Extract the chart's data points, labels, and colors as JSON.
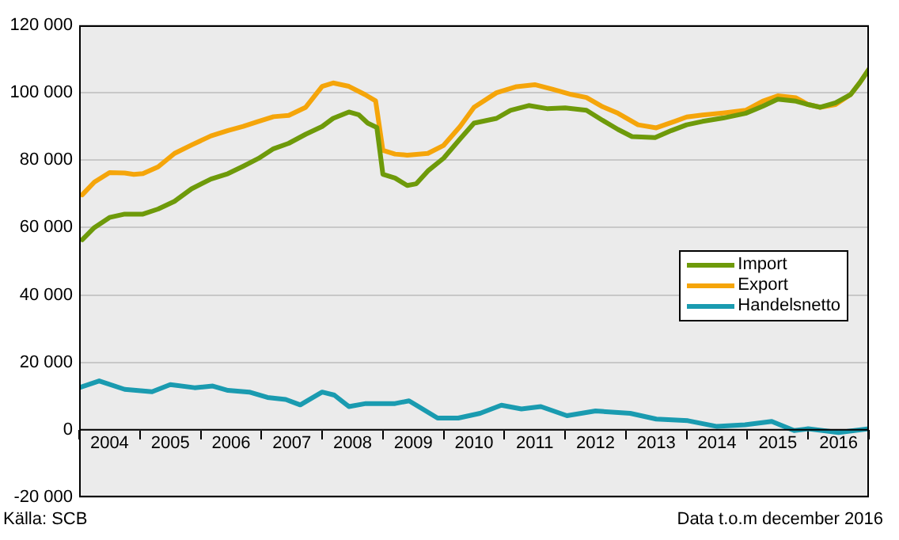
{
  "chart_data": {
    "type": "line",
    "xlim": [
      2004,
      2017
    ],
    "xticks": [
      {
        "value": 2004,
        "label": null
      },
      {
        "value": 2004.5,
        "label": "2004"
      },
      {
        "value": 2005,
        "label": null
      },
      {
        "value": 2005.5,
        "label": "2005"
      },
      {
        "value": 2006,
        "label": null
      },
      {
        "value": 2006.5,
        "label": "2006"
      },
      {
        "value": 2007,
        "label": null
      },
      {
        "value": 2007.5,
        "label": "2007"
      },
      {
        "value": 2008,
        "label": null
      },
      {
        "value": 2008.5,
        "label": "2008"
      },
      {
        "value": 2009,
        "label": null
      },
      {
        "value": 2009.5,
        "label": "2009"
      },
      {
        "value": 2010,
        "label": null
      },
      {
        "value": 2010.5,
        "label": "2010"
      },
      {
        "value": 2011,
        "label": null
      },
      {
        "value": 2011.5,
        "label": "2011"
      },
      {
        "value": 2012,
        "label": null
      },
      {
        "value": 2012.5,
        "label": "2012"
      },
      {
        "value": 2013,
        "label": null
      },
      {
        "value": 2013.5,
        "label": "2013"
      },
      {
        "value": 2014,
        "label": null
      },
      {
        "value": 2014.5,
        "label": "2014"
      },
      {
        "value": 2015,
        "label": null
      },
      {
        "value": 2015.5,
        "label": "2015"
      },
      {
        "value": 2016,
        "label": null
      },
      {
        "value": 2016.5,
        "label": "2016"
      },
      {
        "value": 2017,
        "label": null
      }
    ],
    "ylim": [
      -20000,
      120000
    ],
    "yticks": [
      {
        "value": -20000,
        "label": "-20 000"
      },
      {
        "value": 0,
        "label": "0"
      },
      {
        "value": 20000,
        "label": "20 000"
      },
      {
        "value": 40000,
        "label": "40 000"
      },
      {
        "value": 60000,
        "label": "60 000"
      },
      {
        "value": 80000,
        "label": "80 000"
      },
      {
        "value": 100000,
        "label": "100 000"
      },
      {
        "value": 120000,
        "label": "120 000"
      }
    ],
    "grid": "y",
    "legend": "right",
    "marker": "none",
    "line_style": "solid",
    "annotations": [
      "Källa: SCB",
      "Data t.o.m december 2016"
    ],
    "series": [
      {
        "name": "Import",
        "color": "#6e9a0a",
        "x": [
          2004.05,
          2004.25,
          2004.5,
          2004.75,
          2005.05,
          2005.3,
          2005.57,
          2005.85,
          2006.17,
          2006.45,
          2006.7,
          2006.95,
          2007.2,
          2007.45,
          2007.73,
          2008.0,
          2008.18,
          2008.44,
          2008.6,
          2008.75,
          2008.9,
          2009.0,
          2009.2,
          2009.4,
          2009.55,
          2009.74,
          2010.0,
          2010.27,
          2010.5,
          2010.87,
          2011.1,
          2011.4,
          2011.7,
          2012.0,
          2012.35,
          2012.6,
          2012.87,
          2013.1,
          2013.48,
          2013.75,
          2014.0,
          2014.26,
          2014.6,
          2014.97,
          2015.25,
          2015.5,
          2015.8,
          2016.0,
          2016.2,
          2016.45,
          2016.7,
          2016.85,
          2017.0
        ],
        "values": [
          56400,
          60000,
          63000,
          64000,
          64000,
          65500,
          67800,
          71500,
          74400,
          76000,
          78200,
          80500,
          83400,
          85000,
          87700,
          90000,
          92400,
          94300,
          93500,
          91000,
          89700,
          75800,
          74700,
          72500,
          73000,
          76800,
          80600,
          86300,
          91000,
          92400,
          94800,
          96200,
          95300,
          95500,
          94800,
          92000,
          89100,
          87000,
          86700,
          88800,
          90500,
          91500,
          92500,
          93900,
          96000,
          98100,
          97500,
          96500,
          95700,
          97000,
          99500,
          103000,
          107000
        ]
      },
      {
        "name": "Export",
        "color": "#f5a50a",
        "x": [
          2004.05,
          2004.25,
          2004.5,
          2004.75,
          2004.9,
          2005.05,
          2005.3,
          2005.57,
          2005.85,
          2006.17,
          2006.45,
          2006.7,
          2006.95,
          2007.2,
          2007.45,
          2007.73,
          2008.0,
          2008.18,
          2008.44,
          2008.7,
          2008.88,
          2009.0,
          2009.2,
          2009.4,
          2009.74,
          2010.0,
          2010.27,
          2010.5,
          2010.87,
          2011.2,
          2011.5,
          2011.8,
          2012.1,
          2012.35,
          2012.6,
          2012.87,
          2013.2,
          2013.5,
          2013.8,
          2014.0,
          2014.26,
          2014.6,
          2014.97,
          2015.25,
          2015.5,
          2015.8,
          2016.0,
          2016.2,
          2016.45,
          2016.7,
          2016.85,
          2017.0
        ],
        "values": [
          69700,
          73500,
          76300,
          76200,
          75800,
          76000,
          78000,
          82000,
          84500,
          87200,
          88800,
          90000,
          91500,
          92900,
          93300,
          95700,
          101900,
          102900,
          101900,
          99500,
          97600,
          82900,
          81800,
          81500,
          82000,
          84400,
          90000,
          95700,
          100000,
          101800,
          102400,
          101000,
          99500,
          98600,
          96000,
          93900,
          90500,
          89600,
          91500,
          92800,
          93400,
          94000,
          94800,
          97500,
          99100,
          98500,
          96500,
          95700,
          96500,
          99500,
          103000,
          107000
        ]
      },
      {
        "name": "Handelsnetto",
        "color": "#1a9bb0",
        "x": [
          2004.0,
          2004.33,
          2004.75,
          2005.2,
          2005.5,
          2005.9,
          2006.2,
          2006.45,
          2006.8,
          2007.1,
          2007.4,
          2007.64,
          2008.0,
          2008.2,
          2008.44,
          2008.72,
          2009.2,
          2009.43,
          2009.9,
          2010.24,
          2010.6,
          2010.95,
          2011.28,
          2011.6,
          2012.03,
          2012.5,
          2013.07,
          2013.5,
          2014.02,
          2014.5,
          2014.96,
          2015.4,
          2015.77,
          2016.0,
          2016.5,
          2017.0
        ],
        "values": [
          12500,
          14500,
          12000,
          11300,
          13400,
          12500,
          13000,
          11700,
          11200,
          9600,
          9000,
          7400,
          11200,
          10300,
          6900,
          7800,
          7800,
          8600,
          3500,
          3500,
          4900,
          7300,
          6200,
          6900,
          4200,
          5600,
          4900,
          3200,
          2700,
          1000,
          1500,
          2500,
          -200,
          300,
          -800,
          300
        ]
      }
    ]
  }
}
